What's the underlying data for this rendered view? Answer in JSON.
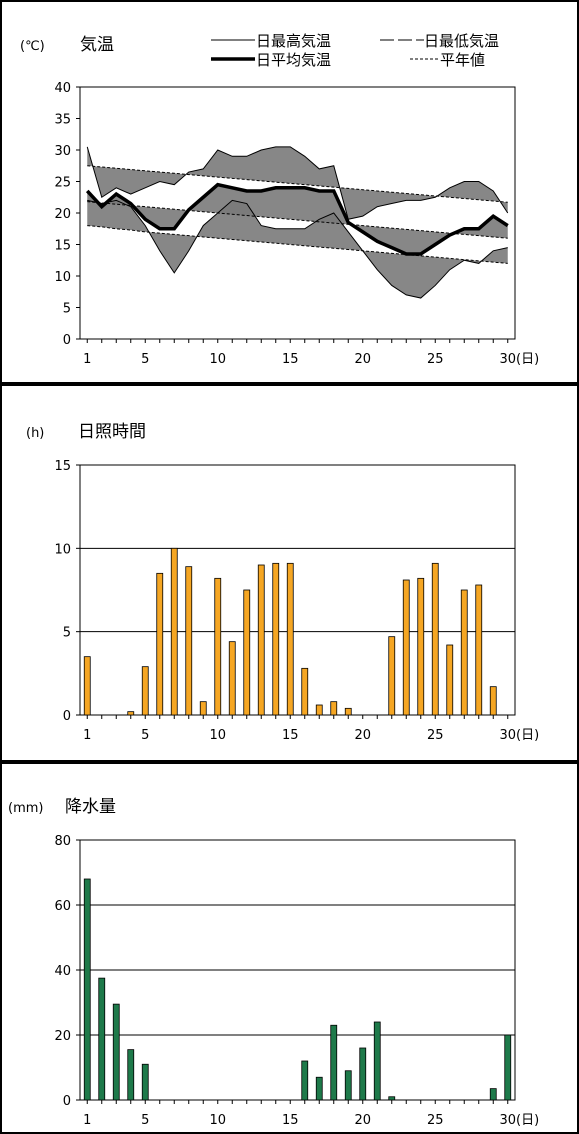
{
  "chart_data": [
    {
      "type": "line",
      "title": "気温",
      "unit": "(℃)",
      "x_unit": "(日)",
      "x": [
        1,
        2,
        3,
        4,
        5,
        6,
        7,
        8,
        9,
        10,
        11,
        12,
        13,
        14,
        15,
        16,
        17,
        18,
        19,
        20,
        21,
        22,
        23,
        24,
        25,
        26,
        27,
        28,
        29,
        30
      ],
      "x_ticks": [
        "1",
        "5",
        "10",
        "15",
        "20",
        "25",
        "30"
      ],
      "x_tick_values": [
        1,
        5,
        10,
        15,
        20,
        25,
        30
      ],
      "y_ticks": [
        "0",
        "5",
        "10",
        "15",
        "20",
        "25",
        "30",
        "35",
        "40"
      ],
      "ylim": [
        0,
        40
      ],
      "legend": [
        {
          "label": "日最高気温",
          "style": "thin-solid"
        },
        {
          "label": "日最低気温",
          "style": "thin-dashed"
        },
        {
          "label": "日平均気温",
          "style": "thick-solid"
        },
        {
          "label": "平年値",
          "style": "dotted"
        }
      ],
      "fill_color": "#7a7a7a",
      "series": {
        "max": [
          30.5,
          22.5,
          24,
          23,
          24,
          25,
          24.5,
          26.5,
          27,
          30,
          29,
          29,
          30,
          30.5,
          30.5,
          29,
          27,
          27.5,
          19,
          19.5,
          21,
          21.5,
          22,
          22,
          22.5,
          24,
          25,
          25,
          23.5,
          20
        ],
        "min": [
          22,
          21.5,
          22,
          21,
          18,
          14,
          10.5,
          14,
          18,
          20,
          22,
          21.5,
          18,
          17.5,
          17.5,
          17.5,
          19,
          20,
          17,
          14,
          11,
          8.5,
          7,
          6.5,
          8.5,
          11,
          12.5,
          12,
          14,
          14.5
        ],
        "mean": [
          23.5,
          21,
          23,
          21.5,
          19,
          17.5,
          17.5,
          20.5,
          22.5,
          24.5,
          24,
          23.5,
          23.5,
          24,
          24,
          24,
          23.5,
          23.5,
          18.5,
          17,
          15.5,
          14.5,
          13.5,
          13.5,
          15,
          16.5,
          17.5,
          17.5,
          19.5,
          18
        ],
        "avg_max": [
          27.5,
          27.3,
          27.1,
          26.9,
          26.7,
          26.5,
          26.3,
          26.1,
          25.9,
          25.7,
          25.5,
          25.3,
          25.1,
          24.9,
          24.7,
          24.5,
          24.3,
          24.1,
          23.9,
          23.7,
          23.5,
          23.3,
          23.1,
          22.9,
          22.7,
          22.5,
          22.3,
          22.1,
          21.9,
          21.7
        ],
        "avg_mean": [
          21.8,
          21.6,
          21.4,
          21.2,
          21.0,
          20.8,
          20.6,
          20.4,
          20.2,
          20.0,
          19.8,
          19.6,
          19.4,
          19.2,
          19.0,
          18.8,
          18.6,
          18.4,
          18.2,
          18.0,
          17.8,
          17.6,
          17.4,
          17.2,
          17.0,
          16.8,
          16.6,
          16.4,
          16.2,
          16.0
        ],
        "avg_min": [
          18.0,
          17.8,
          17.5,
          17.3,
          17.0,
          16.8,
          16.6,
          16.4,
          16.2,
          16.0,
          15.8,
          15.6,
          15.4,
          15.2,
          15.0,
          14.8,
          14.6,
          14.4,
          14.2,
          14.0,
          13.8,
          13.6,
          13.4,
          13.2,
          13.0,
          12.8,
          12.6,
          12.4,
          12.2,
          12.0
        ]
      }
    },
    {
      "type": "bar",
      "title": "日照時間",
      "unit": "(h)",
      "x_unit": "(日)",
      "x": [
        1,
        2,
        3,
        4,
        5,
        6,
        7,
        8,
        9,
        10,
        11,
        12,
        13,
        14,
        15,
        16,
        17,
        18,
        19,
        20,
        21,
        22,
        23,
        24,
        25,
        26,
        27,
        28,
        29,
        30
      ],
      "x_ticks": [
        "1",
        "5",
        "10",
        "15",
        "20",
        "25",
        "30"
      ],
      "x_tick_values": [
        1,
        5,
        10,
        15,
        20,
        25,
        30
      ],
      "y_ticks": [
        "0",
        "5",
        "10",
        "15"
      ],
      "ylim": [
        0,
        15
      ],
      "color": "#f5a623",
      "values": [
        3.5,
        0,
        0,
        0.2,
        2.9,
        8.5,
        10,
        8.9,
        0.8,
        8.2,
        4.4,
        7.5,
        9,
        9.1,
        9.1,
        2.8,
        0.6,
        0.8,
        0.4,
        0,
        0,
        4.7,
        8.1,
        8.2,
        9.1,
        4.2,
        7.5,
        7.8,
        1.7,
        0
      ]
    },
    {
      "type": "bar",
      "title": "降水量",
      "unit": "(mm)",
      "x_unit": "(日)",
      "x": [
        1,
        2,
        3,
        4,
        5,
        6,
        7,
        8,
        9,
        10,
        11,
        12,
        13,
        14,
        15,
        16,
        17,
        18,
        19,
        20,
        21,
        22,
        23,
        24,
        25,
        26,
        27,
        28,
        29,
        30
      ],
      "x_ticks": [
        "1",
        "5",
        "10",
        "15",
        "20",
        "25",
        "30"
      ],
      "x_tick_values": [
        1,
        5,
        10,
        15,
        20,
        25,
        30
      ],
      "y_ticks": [
        "0",
        "20",
        "40",
        "60",
        "80"
      ],
      "ylim": [
        0,
        80
      ],
      "color": "#1e7a4a",
      "values": [
        68,
        37.5,
        29.5,
        15.5,
        11,
        0,
        0,
        0,
        0,
        0,
        0,
        0,
        0,
        0,
        0,
        12,
        7,
        23,
        9,
        16,
        24,
        1,
        0,
        0,
        0,
        0,
        0,
        0,
        3.5,
        20
      ]
    }
  ]
}
